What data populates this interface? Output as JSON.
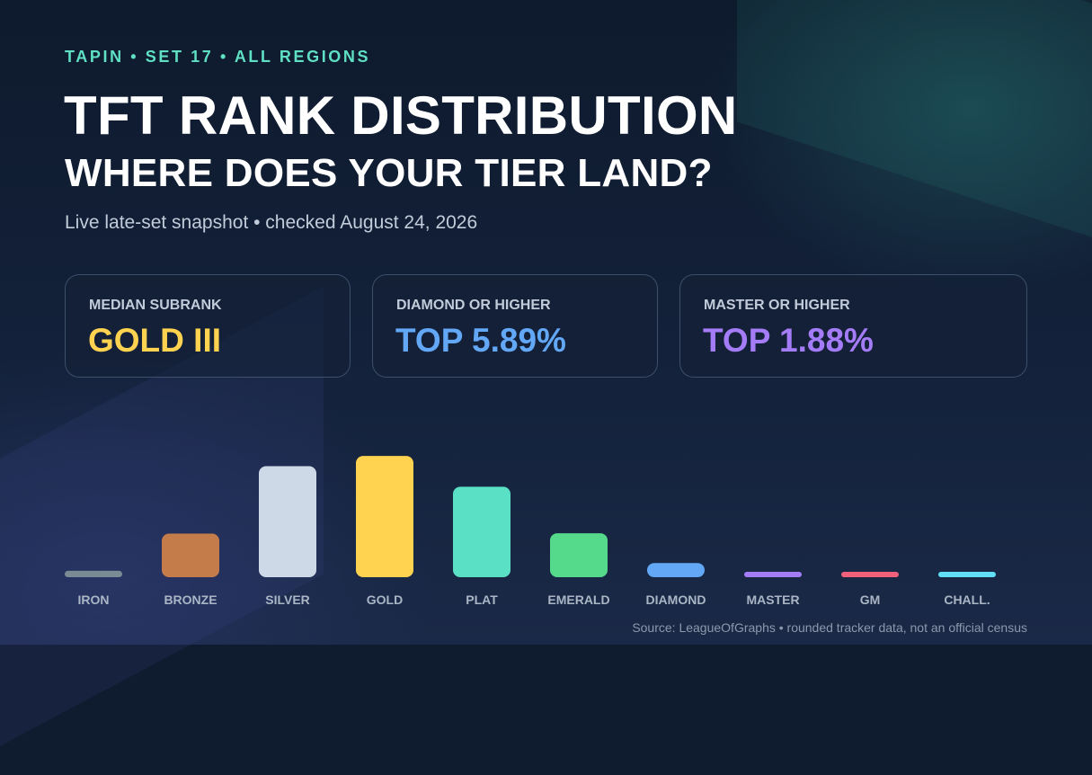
{
  "header": {
    "eyebrow": "TAPIN • SET 17 • ALL REGIONS",
    "title": "TFT RANK DISTRIBUTION",
    "subtitle": "WHERE DOES YOUR TIER LAND?",
    "snapshot": "Live late-set snapshot • checked August 24, 2026"
  },
  "stats": [
    {
      "label": "MEDIAN SUBRANK",
      "value": "GOLD III",
      "color": "#ffd34f"
    },
    {
      "label": "DIAMOND OR HIGHER",
      "value": "TOP 5.89%",
      "color": "#63a7f7"
    },
    {
      "label": "MASTER OR HIGHER",
      "value": "TOP 1.88%",
      "color": "#a57cf7"
    }
  ],
  "chart_data": {
    "type": "bar",
    "categories": [
      "IRON",
      "BRONZE",
      "SILVER",
      "GOLD",
      "PLAT",
      "EMERALD",
      "DIAMOND",
      "MASTER",
      "GM",
      "CHALL."
    ],
    "values": [
      1.8,
      12.3,
      31.3,
      34.2,
      25.5,
      12.4,
      4.0,
      1.5,
      0.3,
      0.1
    ],
    "unit": "%",
    "ylim": [
      0,
      36
    ],
    "colors": [
      "#7b8b96",
      "#c47c4b",
      "#cdd9e6",
      "#ffd34f",
      "#5ae0c4",
      "#55d98b",
      "#63a7f7",
      "#a57cf7",
      "#f0607a",
      "#5fe0f5"
    ],
    "grid": false,
    "legend": "none"
  },
  "footer": {
    "source": "Source: LeagueOfGraphs • rounded tracker data, not an official census"
  }
}
